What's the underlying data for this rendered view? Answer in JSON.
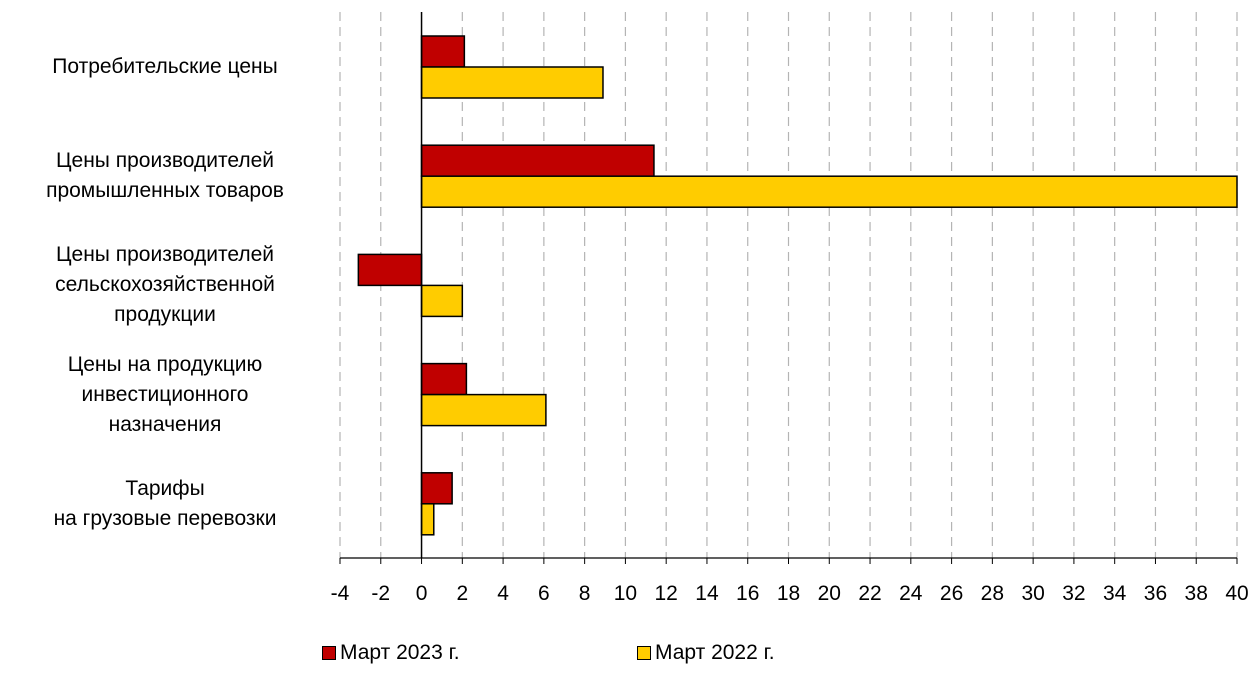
{
  "chart_data": {
    "type": "bar",
    "orientation": "horizontal",
    "categories": [
      "Потребительские цены",
      "Цены производителей\nпромышленных товаров",
      "Цены производителей\nсельскохозяйственной\nпродукции",
      "Цены на продукцию\nинвестиционного\nназначения",
      "Тарифы\nна грузовые перевозки"
    ],
    "series": [
      {
        "name": "Март 2023 г.",
        "color": "#c00000",
        "values": [
          2.1,
          11.4,
          -3.1,
          2.2,
          1.5
        ]
      },
      {
        "name": "Март 2022 г.",
        "color": "#ffcc00",
        "values": [
          8.9,
          40.0,
          2.0,
          6.1,
          0.6
        ]
      }
    ],
    "xlim": [
      -4,
      40
    ],
    "xticks": [
      "-4",
      "-2",
      "0",
      "2",
      "4",
      "6",
      "8",
      "10",
      "12",
      "14",
      "16",
      "18",
      "20",
      "22",
      "24",
      "26",
      "28",
      "30",
      "32",
      "34",
      "36",
      "38",
      "40"
    ],
    "grid": "vertical dashed",
    "legend": "bottom",
    "title": "",
    "xlabel": "",
    "ylabel": ""
  }
}
